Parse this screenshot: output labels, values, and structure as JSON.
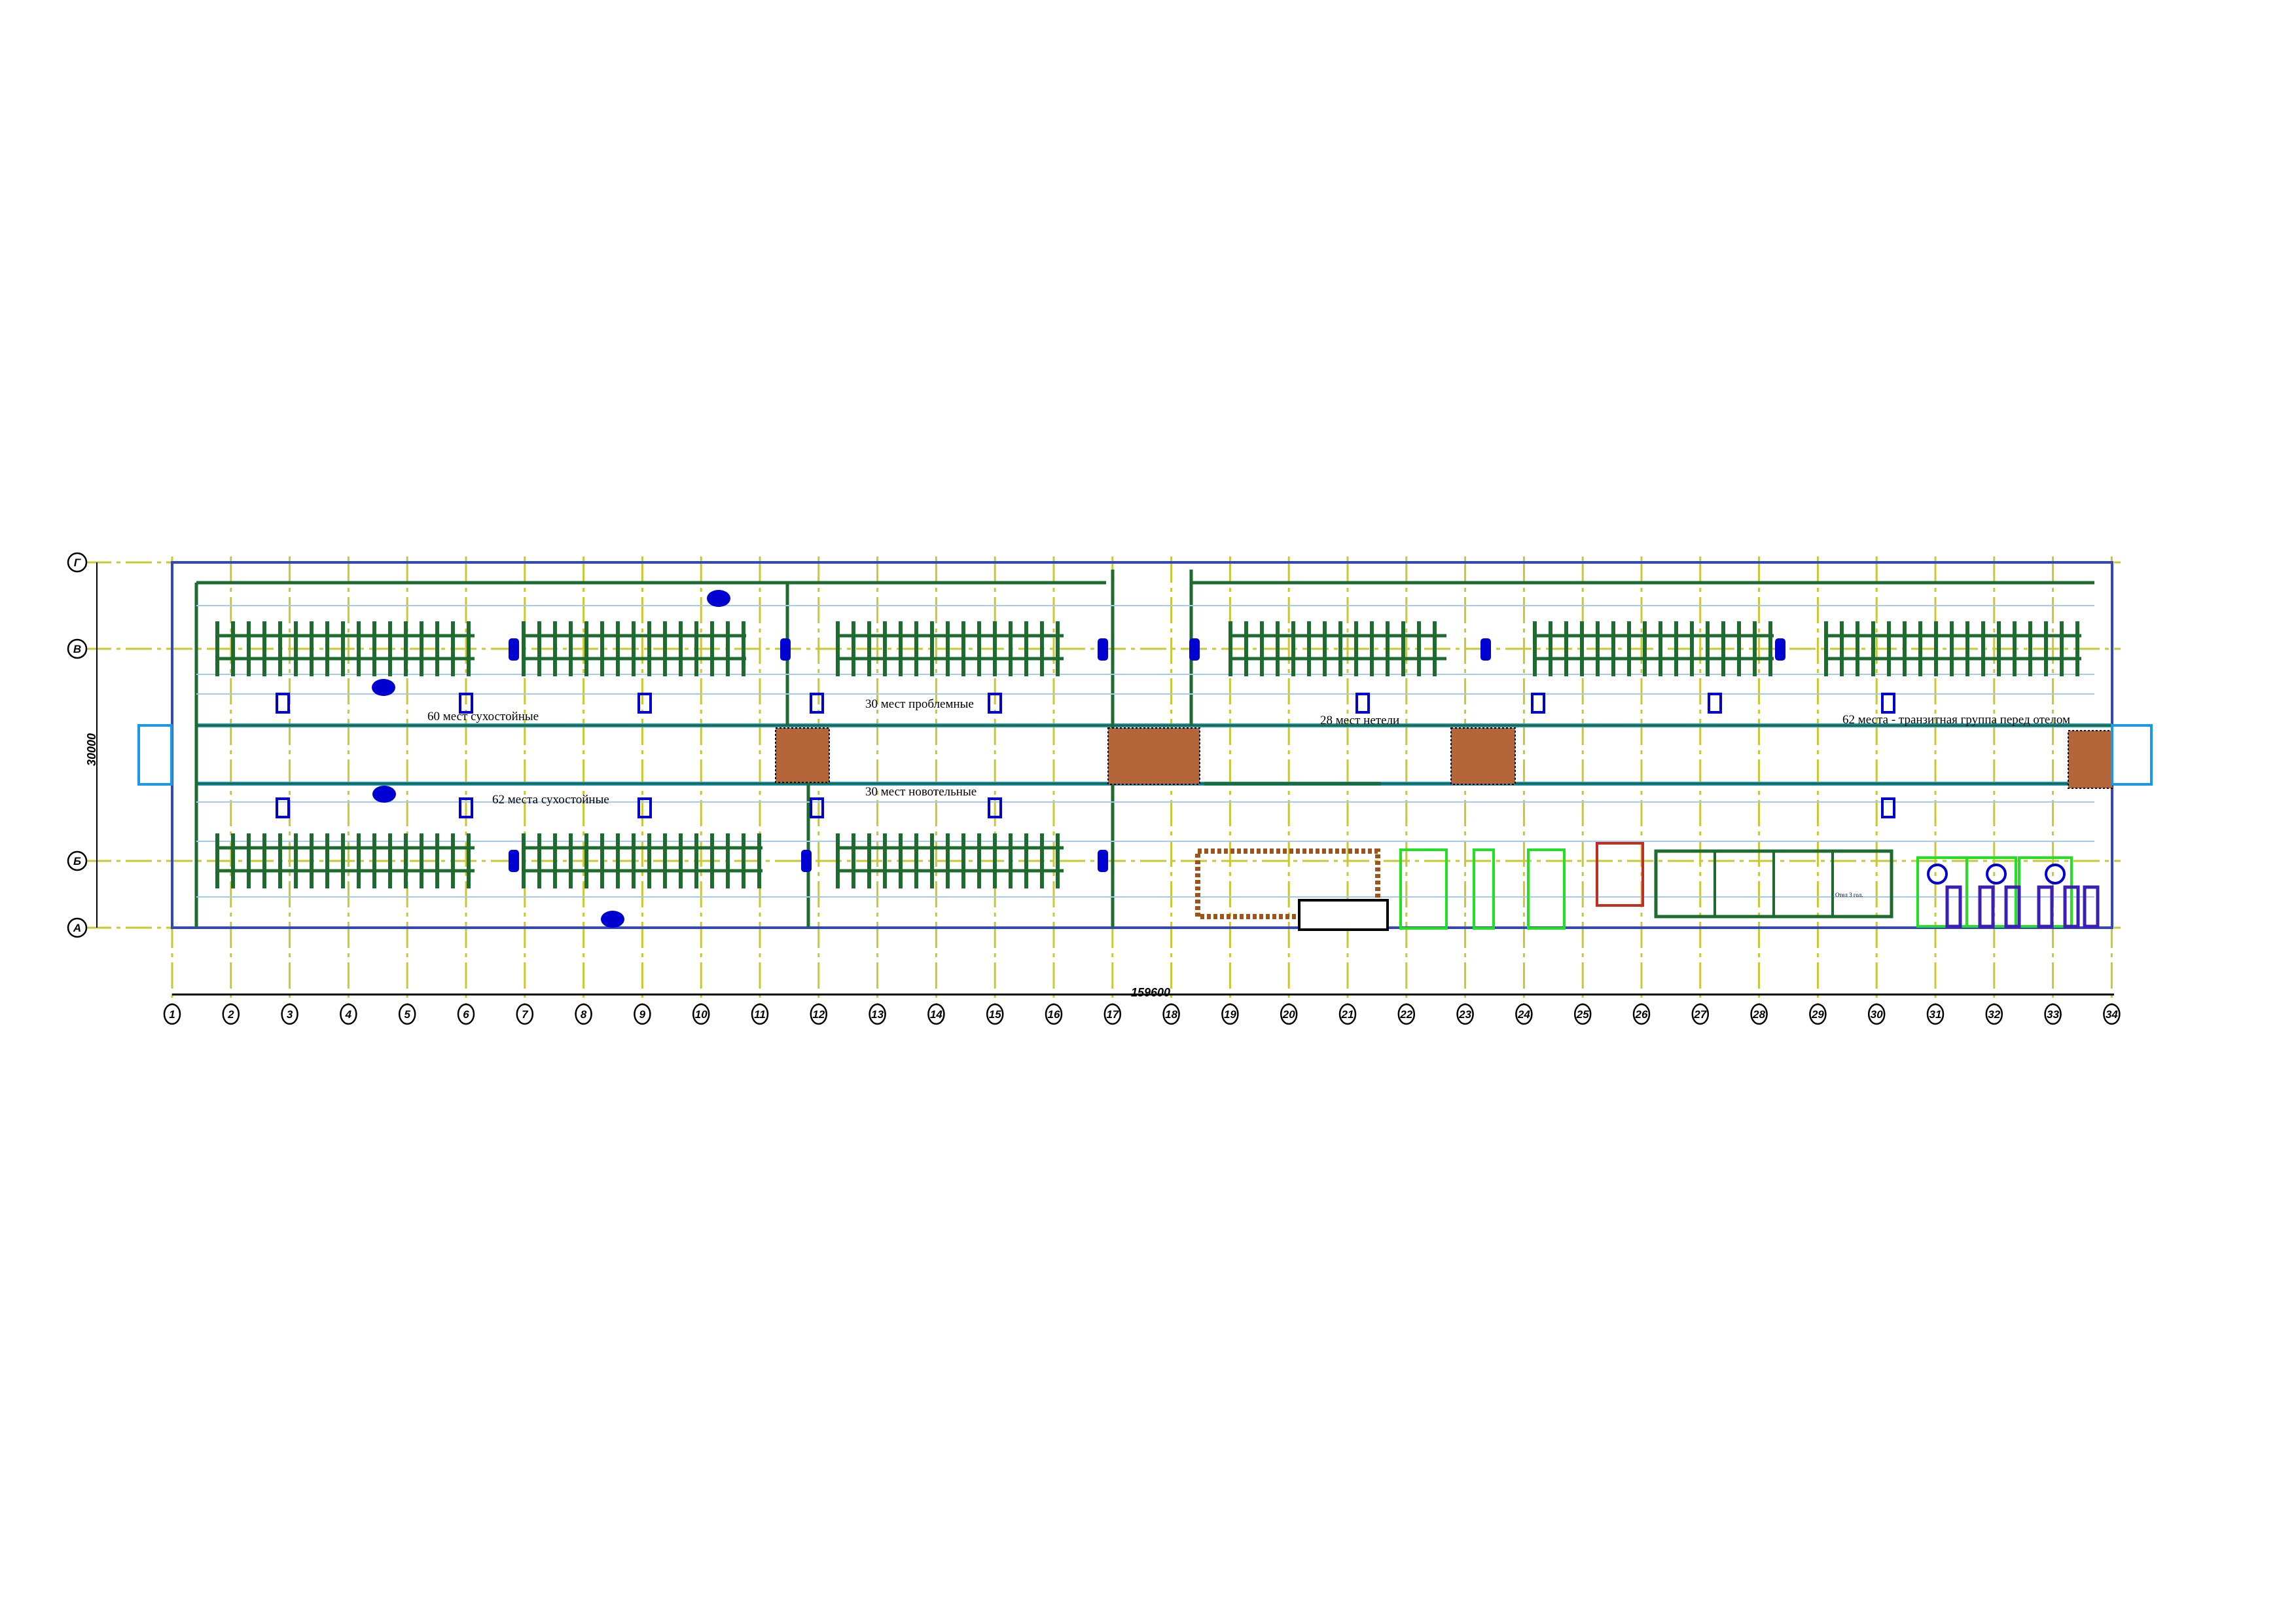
{
  "plan": {
    "groups": [
      {
        "label": "60 мест сухостойные"
      },
      {
        "label": "62 места сухостойные"
      },
      {
        "label": "30 мест  проблемные"
      },
      {
        "label": "30 мест  новотельные"
      },
      {
        "label": "28 мест нетели"
      },
      {
        "label": "62 места - транзитная группа перед отелом"
      }
    ],
    "small_label": "Отел 3 гол.",
    "dimension_length": "159600",
    "dimension_width": "30000",
    "column_axes": [
      "1",
      "2",
      "3",
      "4",
      "5",
      "6",
      "7",
      "8",
      "9",
      "10",
      "11",
      "12",
      "13",
      "14",
      "15",
      "16",
      "17",
      "18",
      "19",
      "20",
      "21",
      "22",
      "23",
      "24",
      "25",
      "26",
      "27",
      "28",
      "29",
      "30",
      "31",
      "32",
      "33",
      "34"
    ],
    "row_axes": [
      "Г",
      "В",
      "Б",
      "А"
    ],
    "colors": {
      "axis": "#c8c832",
      "stall": "#1e6b30",
      "wall": "#1a9ae6",
      "equipment": "#0000d0",
      "feed_passage": "#b5653a",
      "room_outline": "#22e022"
    }
  }
}
